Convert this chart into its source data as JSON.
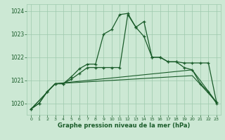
{
  "xlabel": "Graphe pression niveau de la mer (hPa)",
  "xlim": [
    -0.5,
    23.5
  ],
  "ylim": [
    1019.5,
    1024.3
  ],
  "yticks": [
    1020,
    1021,
    1022,
    1023,
    1024
  ],
  "xticks": [
    0,
    1,
    2,
    3,
    4,
    5,
    6,
    7,
    8,
    9,
    10,
    11,
    12,
    13,
    14,
    15,
    16,
    17,
    18,
    19,
    20,
    21,
    22,
    23
  ],
  "bg_color": "#cce8d4",
  "grid_color": "#9ec9ad",
  "line_color": "#1a5c2a",
  "line1_x": [
    0,
    1,
    2,
    3,
    4,
    5,
    6,
    7,
    8,
    9,
    10,
    11,
    12,
    13,
    14,
    15,
    16,
    17,
    18,
    19,
    20,
    21,
    22,
    23
  ],
  "line1_y": [
    1019.75,
    1020.0,
    1020.5,
    1020.85,
    1020.85,
    1021.15,
    1021.5,
    1021.7,
    1021.7,
    1023.0,
    1023.2,
    1023.85,
    1023.9,
    1023.3,
    1022.9,
    1022.0,
    1022.0,
    1021.8,
    1021.8,
    1021.55,
    1021.45,
    1020.85,
    1020.5,
    1020.0
  ],
  "line2_x": [
    0,
    1,
    2,
    3,
    4,
    5,
    6,
    7,
    8,
    9,
    10,
    11,
    12,
    13,
    14,
    15,
    16,
    17,
    18,
    19,
    20,
    21,
    22,
    23
  ],
  "line2_y": [
    1019.75,
    1020.0,
    1020.5,
    1020.85,
    1020.85,
    1021.05,
    1021.3,
    1021.55,
    1021.55,
    1021.55,
    1021.55,
    1021.55,
    1023.85,
    1023.3,
    1023.55,
    1022.0,
    1022.0,
    1021.8,
    1021.8,
    1021.75,
    1021.75,
    1021.75,
    1021.75,
    1020.05
  ],
  "line3_x": [
    0,
    3,
    20,
    23
  ],
  "line3_y": [
    1019.75,
    1020.85,
    1021.45,
    1020.05
  ],
  "line4_x": [
    0,
    3,
    20,
    23
  ],
  "line4_y": [
    1019.75,
    1020.85,
    1021.2,
    1020.05
  ]
}
